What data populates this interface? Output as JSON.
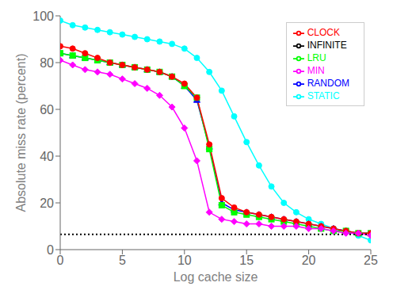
{
  "chart_data": {
    "type": "line",
    "xlabel": "Log cache size",
    "ylabel": "Absolute miss rate (percent)",
    "xlim": [
      0,
      25
    ],
    "ylim": [
      0,
      100
    ],
    "xticks": [
      0,
      5,
      10,
      15,
      20,
      25
    ],
    "yticks": [
      0,
      20,
      40,
      60,
      80,
      100
    ],
    "grid": false,
    "legend": "upper right",
    "x": [
      0,
      1,
      2,
      3,
      4,
      5,
      6,
      7,
      8,
      9,
      10,
      11,
      12,
      13,
      14,
      15,
      16,
      17,
      18,
      19,
      20,
      21,
      22,
      23,
      24,
      25
    ],
    "series": [
      {
        "name": "STATIC",
        "color": "#00ffff",
        "marker": "circle",
        "line_style": "solid",
        "values": [
          98,
          96,
          95,
          94,
          93,
          92,
          91,
          90,
          89,
          88,
          86,
          82,
          76,
          68,
          57,
          46,
          36,
          27,
          20,
          16,
          13,
          11,
          9,
          8,
          6,
          4
        ]
      },
      {
        "name": "RANDOM",
        "color": "#0000ff",
        "marker": "triangle",
        "line_style": "solid",
        "values": [
          84,
          83,
          82,
          81,
          80,
          79,
          78,
          77,
          76,
          74,
          70,
          64,
          44,
          20,
          17,
          16,
          15,
          14,
          13,
          12,
          11,
          10,
          9,
          8,
          7,
          7
        ]
      },
      {
        "name": "LRU",
        "color": "#00ff00",
        "marker": "square",
        "line_style": "solid",
        "values": [
          84,
          83,
          82,
          81,
          80,
          79,
          78,
          77,
          76,
          74,
          70,
          65,
          43,
          19,
          16,
          15,
          14,
          13,
          12,
          11,
          10,
          9,
          8,
          8,
          7,
          7
        ]
      },
      {
        "name": "CLOCK",
        "color": "#ff0000",
        "marker": "circle",
        "line_style": "solid",
        "values": [
          87,
          86,
          84,
          82,
          80,
          79,
          78,
          77,
          76,
          74,
          71,
          65,
          45,
          22,
          18,
          16,
          15,
          14,
          13,
          12,
          11,
          10,
          9,
          8,
          7,
          7
        ]
      },
      {
        "name": "MIN",
        "color": "#ff00ff",
        "marker": "diamond",
        "line_style": "solid",
        "values": [
          81,
          79,
          77,
          76,
          75,
          73,
          71,
          69,
          66,
          61,
          52,
          38,
          16,
          13,
          12,
          11,
          11,
          10,
          10,
          10,
          9,
          9,
          8,
          7,
          7,
          6
        ]
      },
      {
        "name": "INFINITE",
        "color": "#000000",
        "marker": "none",
        "line_style": "dotted",
        "values": [
          6.5,
          6.5,
          6.5,
          6.5,
          6.5,
          6.5,
          6.5,
          6.5,
          6.5,
          6.5,
          6.5,
          6.5,
          6.5,
          6.5,
          6.5,
          6.5,
          6.5,
          6.5,
          6.5,
          6.5,
          6.5,
          6.5,
          6.5,
          6.5,
          6.5,
          6.5
        ]
      }
    ]
  }
}
